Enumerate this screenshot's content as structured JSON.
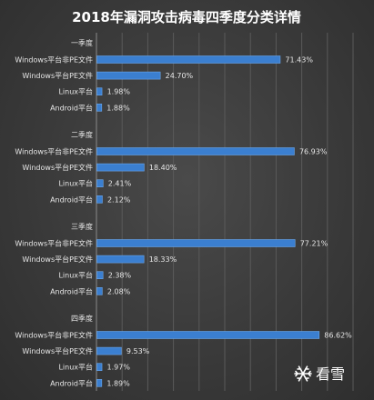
{
  "chart_data": {
    "type": "bar",
    "orientation": "horizontal",
    "title": "2018年漏洞攻击病毒四季度分类详情",
    "grid": true,
    "groups": [
      {
        "label": "一季度",
        "items": [
          {
            "category": "Windows平台非PE文件",
            "value": 71.43,
            "label": "71.43%"
          },
          {
            "category": "Windows平台PE文件",
            "value": 24.7,
            "label": "24.70%"
          },
          {
            "category": "Linux平台",
            "value": 1.98,
            "label": "1.98%"
          },
          {
            "category": "Android平台",
            "value": 1.88,
            "label": "1.88%"
          }
        ]
      },
      {
        "label": "二季度",
        "items": [
          {
            "category": "Windows平台非PE文件",
            "value": 76.93,
            "label": "76.93%"
          },
          {
            "category": "Windows平台PE文件",
            "value": 18.4,
            "label": "18.40%"
          },
          {
            "category": "Linux平台",
            "value": 2.41,
            "label": "2.41%"
          },
          {
            "category": "Android平台",
            "value": 2.12,
            "label": "2.12%"
          }
        ]
      },
      {
        "label": "三季度",
        "items": [
          {
            "category": "Windows平台非PE文件",
            "value": 77.21,
            "label": "77.21%"
          },
          {
            "category": "Windows平台PE文件",
            "value": 18.33,
            "label": "18.33%"
          },
          {
            "category": "Linux平台",
            "value": 2.38,
            "label": "2.38%"
          },
          {
            "category": "Android平台",
            "value": 2.08,
            "label": "2.08%"
          }
        ]
      },
      {
        "label": "四季度",
        "items": [
          {
            "category": "Windows平台非PE文件",
            "value": 86.62,
            "label": "86.62%"
          },
          {
            "category": "Windows平台PE文件",
            "value": 9.53,
            "label": "9.53%"
          },
          {
            "category": "Linux平台",
            "value": 1.97,
            "label": "1.97%"
          },
          {
            "category": "Android平台",
            "value": 1.89,
            "label": "1.89%"
          }
        ]
      }
    ],
    "xlim": [
      0,
      100
    ]
  },
  "watermark": {
    "text": "看雪",
    "icon": "snowflake-icon"
  },
  "colors": {
    "bar": "#3b7fd0",
    "bar_edge": "#6aa6ea",
    "background": "#3a3a3a",
    "text": "#e6e6e6",
    "title": "#ffffff"
  }
}
